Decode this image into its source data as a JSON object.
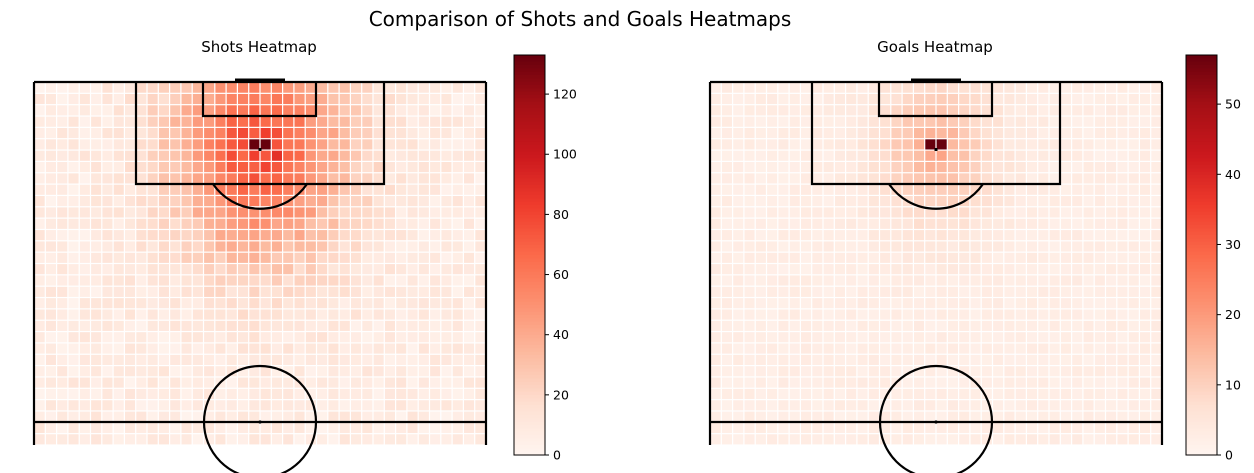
{
  "figure": {
    "title": "Comparison of Shots and Goals Heatmaps"
  },
  "colormap": {
    "name": "Reds",
    "stops": [
      "#fff5f0",
      "#fee0d2",
      "#fcbba1",
      "#fc9272",
      "#fb6a4a",
      "#ef3b2c",
      "#cb181d",
      "#a50f15",
      "#67000d"
    ]
  },
  "pitch": {
    "line_color": "#000000",
    "background": "#ffffff"
  },
  "chart_data": [
    {
      "type": "heatmap",
      "title": "Shots Heatmap",
      "vmin": 0,
      "vmax": 133,
      "colorbar_ticks": [
        0,
        20,
        40,
        60,
        80,
        100,
        120
      ],
      "hotspot_value": 133,
      "secondary_value": 65,
      "spread": 1.0
    },
    {
      "type": "heatmap",
      "title": "Goals Heatmap",
      "vmin": 0,
      "vmax": 57,
      "colorbar_ticks": [
        0,
        10,
        20,
        30,
        40,
        50
      ],
      "hotspot_value": 57,
      "secondary_value": 12,
      "spread": 0.45
    }
  ]
}
